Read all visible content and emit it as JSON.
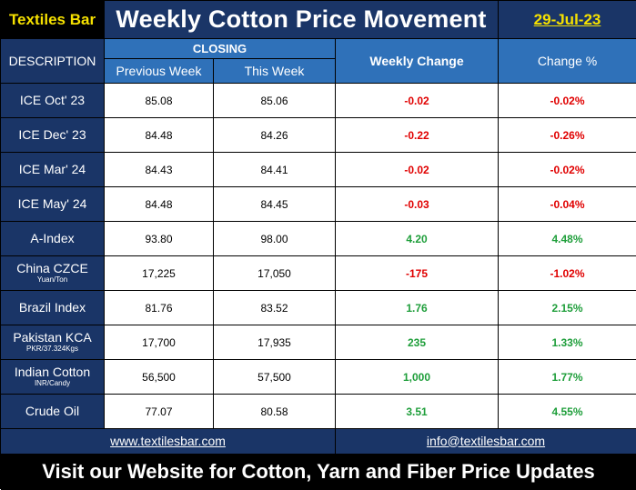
{
  "header": {
    "brand": "Textiles Bar",
    "title": "Weekly Cotton Price Movement",
    "date": "29-Jul-23"
  },
  "columns": {
    "description": "DESCRIPTION",
    "closing": "CLOSING",
    "previous_week": "Previous Week",
    "this_week": "This Week",
    "weekly_change": "Weekly Change",
    "change_pct": "Change %"
  },
  "rows": [
    {
      "name": "ICE Oct' 23",
      "unit": "",
      "prev": "85.08",
      "curr": "85.06",
      "change": "-0.02",
      "pct": "-0.02%",
      "direction": "down"
    },
    {
      "name": "ICE Dec' 23",
      "unit": "",
      "prev": "84.48",
      "curr": "84.26",
      "change": "-0.22",
      "pct": "-0.26%",
      "direction": "down"
    },
    {
      "name": "ICE Mar' 24",
      "unit": "",
      "prev": "84.43",
      "curr": "84.41",
      "change": "-0.02",
      "pct": "-0.02%",
      "direction": "down"
    },
    {
      "name": "ICE May' 24",
      "unit": "",
      "prev": "84.48",
      "curr": "84.45",
      "change": "-0.03",
      "pct": "-0.04%",
      "direction": "down"
    },
    {
      "name": "A-Index",
      "unit": "",
      "prev": "93.80",
      "curr": "98.00",
      "change": "4.20",
      "pct": "4.48%",
      "direction": "up"
    },
    {
      "name": "China CZCE",
      "unit": "Yuan/Ton",
      "prev": "17,225",
      "curr": "17,050",
      "change": "-175",
      "pct": "-1.02%",
      "direction": "down"
    },
    {
      "name": "Brazil Index",
      "unit": "",
      "prev": "81.76",
      "curr": "83.52",
      "change": "1.76",
      "pct": "2.15%",
      "direction": "up"
    },
    {
      "name": "Pakistan  KCA",
      "unit": "PKR/37.324Kgs",
      "prev": "17,700",
      "curr": "17,935",
      "change": "235",
      "pct": "1.33%",
      "direction": "up"
    },
    {
      "name": "Indian Cotton",
      "unit": "INR/Candy",
      "prev": "56,500",
      "curr": "57,500",
      "change": "1,000",
      "pct": "1.77%",
      "direction": "up"
    },
    {
      "name": "Crude Oil",
      "unit": "",
      "prev": "77.07",
      "curr": "80.58",
      "change": "3.51",
      "pct": "4.55%",
      "direction": "up"
    }
  ],
  "links": {
    "website": "www.textilesbar.com",
    "email": "info@textilesbar.com"
  },
  "footer": {
    "text": "Visit our Website for Cotton, Yarn and Fiber Price Updates"
  },
  "colors": {
    "navy": "#1a3567",
    "blue": "#2f71b9",
    "accent_yellow": "#f6e100",
    "negative": "#e00000",
    "positive": "#1e9e3a"
  }
}
